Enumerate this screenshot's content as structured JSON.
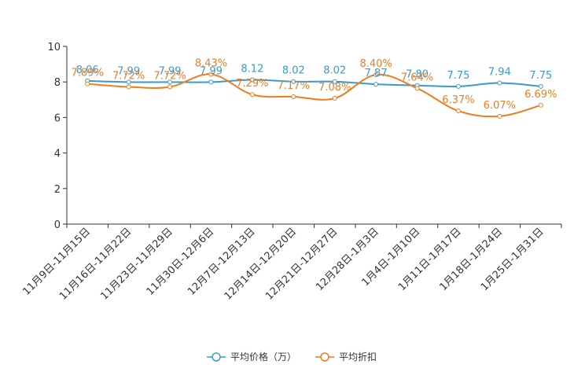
{
  "chart_data": {
    "type": "line",
    "title": "",
    "xlabel": "",
    "ylabel": "",
    "ylim": [
      0,
      10
    ],
    "yticks": [
      0,
      2,
      4,
      6,
      8,
      10
    ],
    "categories": [
      "11月9日-11月15日",
      "11月16日-11月22日",
      "11月23日-11月29日",
      "11月30日-12月6日",
      "12月7日-12月13日",
      "12月14日-12月20日",
      "12月21日-12月27日",
      "12月28日-1月3日",
      "1月4日-1月10日",
      "1月11日-1月17日",
      "1月18日-1月24日",
      "1月25日-1月31日"
    ],
    "series": [
      {
        "name": "平均价格（万）",
        "color": "#3a9acb",
        "values": [
          8.06,
          7.99,
          7.99,
          7.99,
          8.12,
          8.02,
          8.02,
          7.87,
          7.8,
          7.75,
          7.94,
          7.75
        ],
        "labels": [
          "8.06",
          "7.99",
          "7.99",
          "7.99",
          "8.12",
          "8.02",
          "8.02",
          "7.87",
          "7.80",
          "7.75",
          "7.94",
          "7.75"
        ]
      },
      {
        "name": "平均折扣",
        "color": "#f07c1c",
        "values": [
          7.89,
          7.72,
          7.72,
          8.43,
          7.29,
          7.17,
          7.08,
          8.4,
          7.64,
          6.37,
          6.07,
          6.69
        ],
        "labels": [
          "7.89%",
          "7.72%",
          "7.72%",
          "8.43%",
          "7.29%",
          "7.17%",
          "7.08%",
          "8.40%",
          "7.64%",
          "6.37%",
          "6.07%",
          "6.69%"
        ]
      }
    ],
    "legend_position": "bottom-center"
  }
}
